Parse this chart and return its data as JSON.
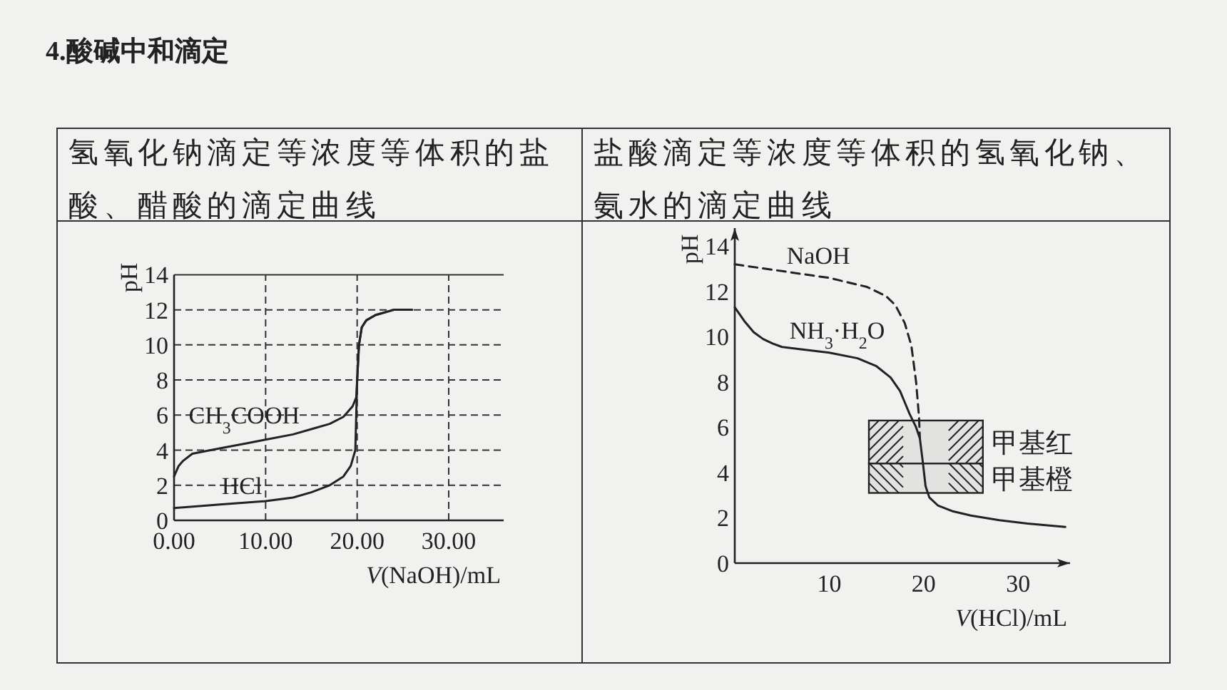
{
  "chart_data": [
    {
      "type": "line",
      "title": "4.酸碱中和滴定",
      "subtitle": "氢氧化钠滴定等浓度等体积的盐酸、醋酸的滴定曲线",
      "xlabel": "*V*(NaOH)/mL",
      "ylabel": "pH",
      "xlim": [
        0,
        36
      ],
      "ylim": [
        0,
        14
      ],
      "xticks": [
        {
          "value": 0,
          "label": "0.00"
        },
        {
          "value": 10,
          "label": "10.00"
        },
        {
          "value": 20,
          "label": "20.00"
        },
        {
          "value": 30,
          "label": "30.00"
        }
      ],
      "yticks": [
        0,
        2,
        4,
        6,
        8,
        10,
        12,
        14
      ],
      "grid": true,
      "legend": false,
      "marker": "none",
      "series": [
        {
          "name": "CH$_{3}$COOH",
          "color": "#222222",
          "x": [
            0,
            0.5,
            1,
            2,
            3,
            5,
            8,
            10,
            13,
            15,
            17,
            18.5,
            19.5,
            19.9,
            20,
            20.2,
            20.5,
            21,
            22,
            24,
            26
          ],
          "values": [
            2.5,
            3.1,
            3.4,
            3.8,
            3.9,
            4.1,
            4.4,
            4.6,
            4.9,
            5.2,
            5.5,
            5.9,
            6.5,
            7,
            8,
            10,
            11,
            11.4,
            11.7,
            12,
            12
          ]
        },
        {
          "name": "HCl",
          "color": "#222222",
          "x": [
            0,
            5,
            10,
            13,
            15,
            17,
            18.5,
            19.3,
            19.8,
            20,
            20.2,
            20.5,
            21,
            22,
            24,
            26
          ],
          "values": [
            0.7,
            0.9,
            1.1,
            1.3,
            1.6,
            2,
            2.5,
            3.1,
            4,
            8,
            10,
            11,
            11.4,
            11.7,
            12,
            12
          ]
        }
      ]
    },
    {
      "type": "line",
      "subtitle": "盐酸滴定等浓度等体积的氢氧化钠、氨水的滴定曲线",
      "xlabel": "*V*(HCl)/mL",
      "ylabel": "pH",
      "xlim": [
        0,
        35.5
      ],
      "ylim": [
        0,
        14.8
      ],
      "xticks": [
        10,
        20,
        30
      ],
      "yticks": [
        0,
        2,
        4,
        6,
        8,
        10,
        12,
        14
      ],
      "grid": false,
      "legend": false,
      "marker": "none",
      "bands": [
        {
          "axis": "y",
          "from": 4.4,
          "to": 6.3,
          "label": "甲基红",
          "color": "#e2e2e0"
        },
        {
          "axis": "y",
          "from": 3.1,
          "to": 4.4,
          "label": "甲基橙",
          "color": "#e2e2e0"
        }
      ],
      "series": [
        {
          "name": "NaOH",
          "color": "#222222",
          "line_style": "dashed",
          "x": [
            0,
            5,
            10,
            14,
            16,
            17,
            18,
            18.7,
            19.2,
            19.5,
            19.6
          ],
          "values": [
            13.2,
            12.9,
            12.6,
            12.2,
            11.8,
            11.4,
            10.6,
            9.6,
            8,
            6.5,
            5.5
          ]
        },
        {
          "name": "NH$_{3}$·H$_{2}$O",
          "color": "#222222",
          "line_style": "solid",
          "x": [
            0,
            1,
            2,
            3,
            4,
            5,
            7,
            10,
            13,
            15,
            16.5,
            17.5,
            18.5,
            19.2,
            19.6,
            19.9,
            20.2,
            20.6,
            21.5,
            23,
            25,
            28,
            31,
            35
          ],
          "values": [
            11.3,
            10.7,
            10.2,
            9.9,
            9.7,
            9.55,
            9.45,
            9.3,
            9.05,
            8.7,
            8.2,
            7.6,
            6.6,
            6,
            5.5,
            4.5,
            3.4,
            2.9,
            2.55,
            2.3,
            2.1,
            1.9,
            1.75,
            1.6
          ]
        }
      ]
    }
  ]
}
